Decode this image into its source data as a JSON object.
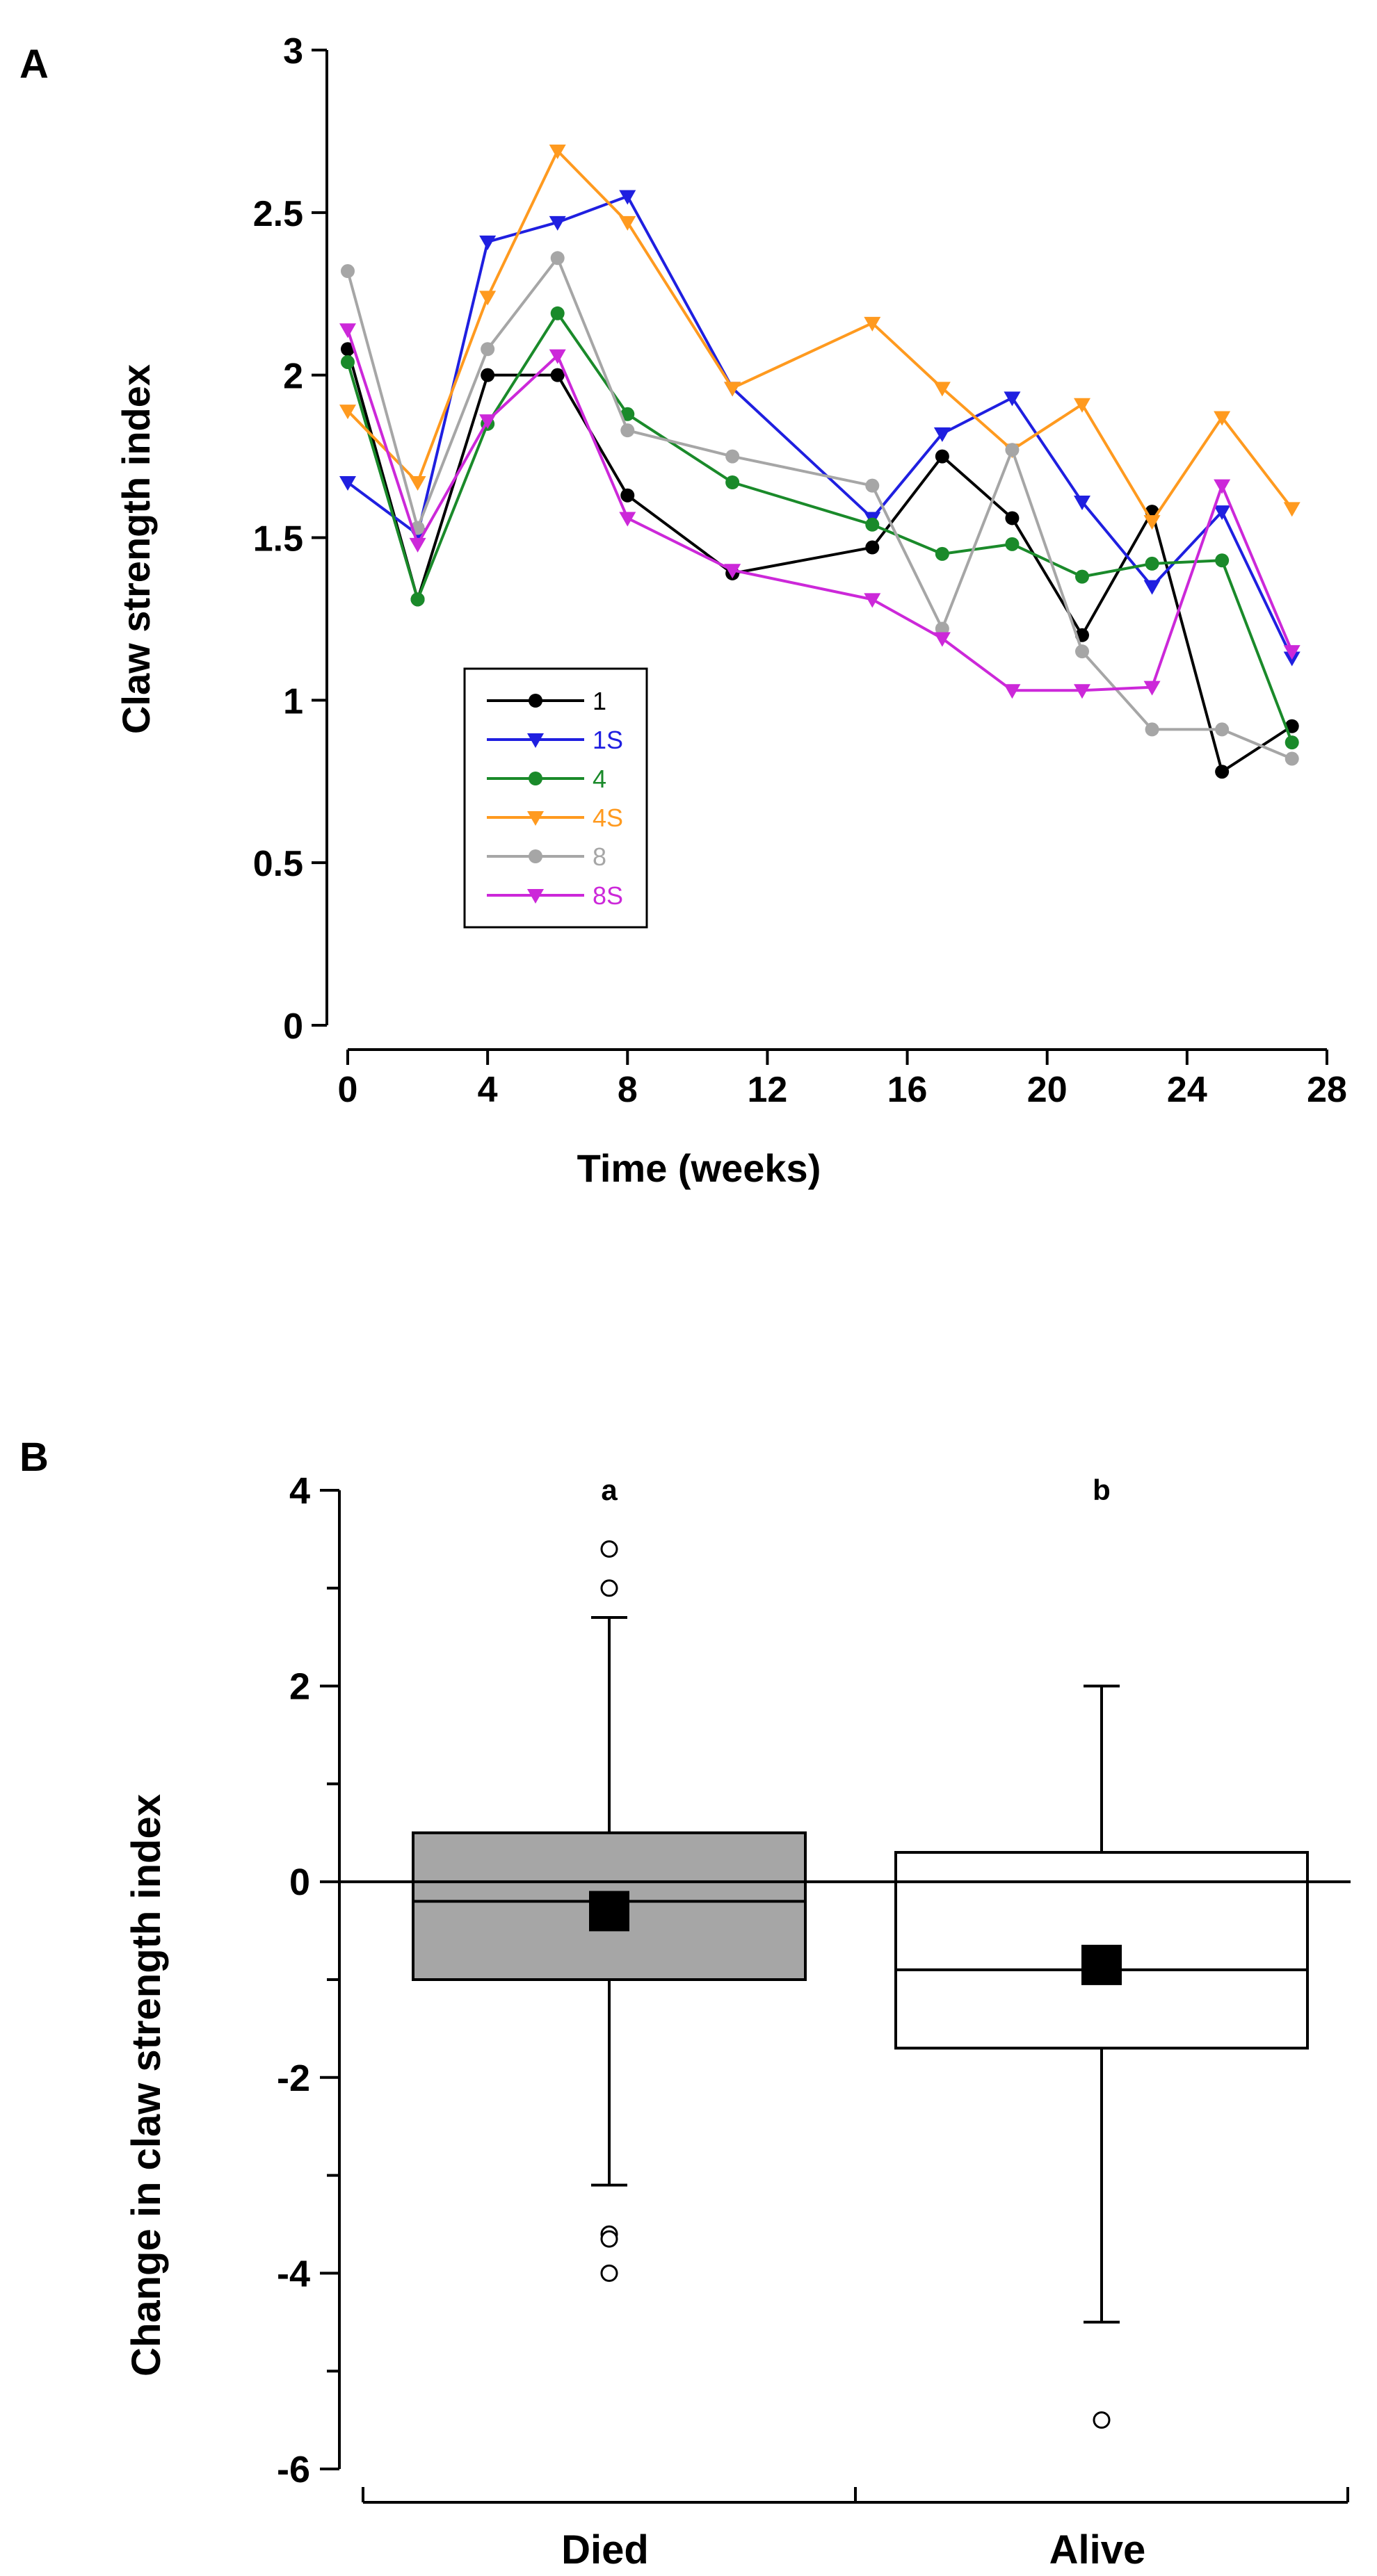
{
  "chart_data": [
    {
      "panel_label": "A",
      "type": "line",
      "title": "",
      "xlabel": "Time (weeks)",
      "ylabel": "Claw strength index",
      "xlim": [
        0,
        28
      ],
      "ylim": [
        0,
        3
      ],
      "x_ticks": [
        "0",
        "4",
        "8",
        "12",
        "16",
        "20",
        "24",
        "28"
      ],
      "y_ticks": [
        "0",
        "0.5",
        "1",
        "1.5",
        "2",
        "2.5",
        "3"
      ],
      "x": [
        0,
        2,
        4,
        6,
        8,
        11,
        15,
        17,
        19,
        21,
        23,
        25,
        27
      ],
      "legend_position": "bottom-left",
      "series": [
        {
          "name": "1",
          "color": "#000000",
          "marker": "circle",
          "values": [
            2.08,
            1.31,
            2.0,
            2.0,
            1.63,
            1.39,
            1.47,
            1.75,
            1.56,
            1.2,
            1.58,
            0.78,
            0.92
          ]
        },
        {
          "name": "1S",
          "color": "#1f1fe0",
          "marker": "triangle",
          "values": [
            1.67,
            1.51,
            2.41,
            2.47,
            2.55,
            1.96,
            1.56,
            1.82,
            1.93,
            1.61,
            1.35,
            1.58,
            1.13
          ]
        },
        {
          "name": "4",
          "color": "#1a8a2a",
          "marker": "circle",
          "values": [
            2.04,
            1.31,
            1.85,
            2.19,
            1.88,
            1.67,
            1.54,
            1.45,
            1.48,
            1.38,
            1.42,
            1.43,
            0.87
          ]
        },
        {
          "name": "4S",
          "color": "#ff9a1f",
          "marker": "triangle",
          "values": [
            1.89,
            1.67,
            2.24,
            2.69,
            2.47,
            1.96,
            2.16,
            1.96,
            1.77,
            1.91,
            1.55,
            1.87,
            1.59
          ]
        },
        {
          "name": "8",
          "color": "#a6a6a6",
          "marker": "circle",
          "values": [
            2.32,
            1.53,
            2.08,
            2.36,
            1.83,
            1.75,
            1.66,
            1.22,
            1.77,
            1.15,
            0.91,
            0.91,
            0.82
          ]
        },
        {
          "name": "8S",
          "color": "#cc28d9",
          "marker": "triangle",
          "values": [
            2.14,
            1.48,
            1.86,
            2.06,
            1.56,
            1.4,
            1.31,
            1.19,
            1.03,
            1.03,
            1.04,
            1.66,
            1.15
          ]
        }
      ]
    },
    {
      "panel_label": "B",
      "type": "box",
      "title": "",
      "xlabel": "",
      "ylabel": "Change in claw strength index",
      "ylim": [
        -6,
        4
      ],
      "y_ticks": [
        "4",
        "2",
        "0",
        "-2",
        "-4",
        "-6"
      ],
      "reference_line": 0,
      "categories": [
        "Died",
        "Alive"
      ],
      "boxes": [
        {
          "category": "Died",
          "group_letter": "a",
          "fill": "#a6a6a6",
          "q1": -1.0,
          "median": -0.2,
          "q3": 0.5,
          "mean": -0.3,
          "whisker_low": -3.1,
          "whisker_high": 2.7,
          "outliers": [
            3.4,
            3.0,
            -3.6,
            -3.65,
            -4.0
          ]
        },
        {
          "category": "Alive",
          "group_letter": "b",
          "fill": "#ffffff",
          "q1": -1.7,
          "median": -0.9,
          "q3": 0.3,
          "mean": -0.85,
          "whisker_low": -4.5,
          "whisker_high": 2.0,
          "outliers": [
            -5.5
          ]
        }
      ]
    }
  ]
}
